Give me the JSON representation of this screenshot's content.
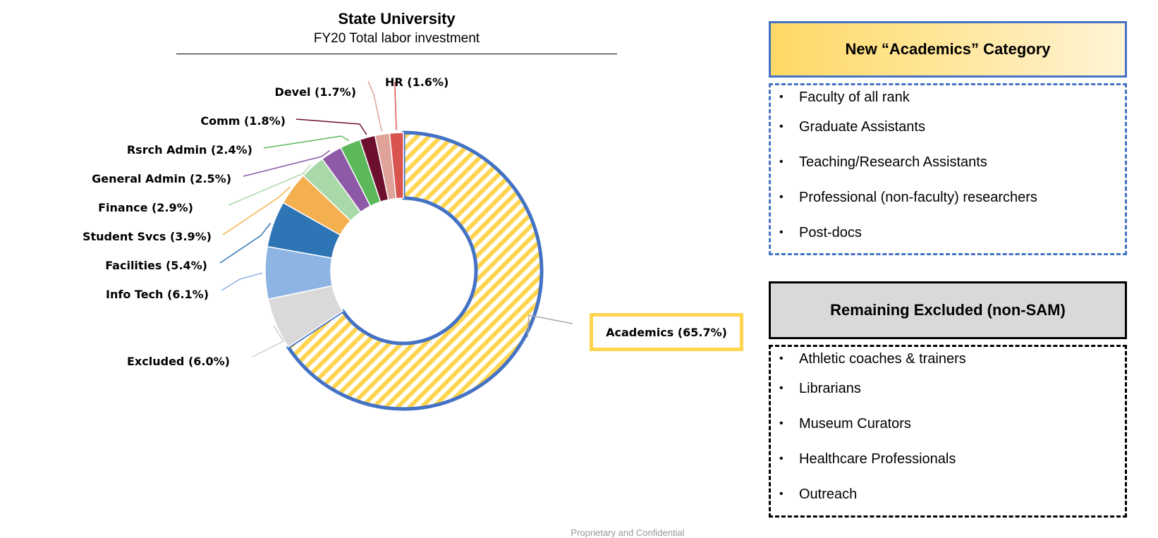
{
  "chart_data": {
    "type": "pie",
    "title": "State University",
    "subtitle": "FY20 Total labor investment",
    "slices": [
      {
        "name": "Academics",
        "label": "Academics (65.7%)",
        "value": 65.7,
        "color": "#ffd54f",
        "pattern": "hatched",
        "highlight": true
      },
      {
        "name": "Excluded",
        "label": "Excluded (6.0%)",
        "value": 6.0,
        "color": "#d9d9d9"
      },
      {
        "name": "Info Tech",
        "label": "Info Tech (6.1%)",
        "value": 6.1,
        "color": "#8db4e2"
      },
      {
        "name": "Facilities",
        "label": "Facilities (5.4%)",
        "value": 5.4,
        "color": "#2e75b6"
      },
      {
        "name": "Student Svcs",
        "label": "Student Svcs (3.9%)",
        "value": 3.9,
        "color": "#f4b04f"
      },
      {
        "name": "Finance",
        "label": "Finance (2.9%)",
        "value": 2.9,
        "color": "#a9d8a9"
      },
      {
        "name": "General Admin",
        "label": "General Admin (2.5%)",
        "value": 2.5,
        "color": "#8e5aa8"
      },
      {
        "name": "Rsrch Admin",
        "label": "Rsrch Admin (2.4%)",
        "value": 2.4,
        "color": "#5bb85b"
      },
      {
        "name": "Comm",
        "label": "Comm (1.8%)",
        "value": 1.8,
        "color": "#6d0f2e"
      },
      {
        "name": "Devel",
        "label": "Devel (1.7%)",
        "value": 1.7,
        "color": "#e0a39a"
      },
      {
        "name": "HR",
        "label": "HR (1.6%)",
        "value": 1.6,
        "color": "#d9534f"
      }
    ],
    "legend": "none",
    "highlight_outline_color": "#4472c4"
  },
  "panels": {
    "new_category": {
      "title": "New “Academics” Category",
      "items": [
        "Faculty of all rank",
        "Graduate Assistants",
        "Teaching/Research Assistants",
        "Professional (non-faculty) researchers",
        "Post-docs"
      ]
    },
    "excluded": {
      "title": "Remaining Excluded (non-SAM)",
      "items": [
        "Athletic coaches & trainers",
        "Librarians",
        "Museum Curators",
        "Healthcare Professionals",
        "Outreach"
      ]
    },
    "bullet_char": "•"
  },
  "footer": {
    "text": "Proprietary and Confidential"
  }
}
